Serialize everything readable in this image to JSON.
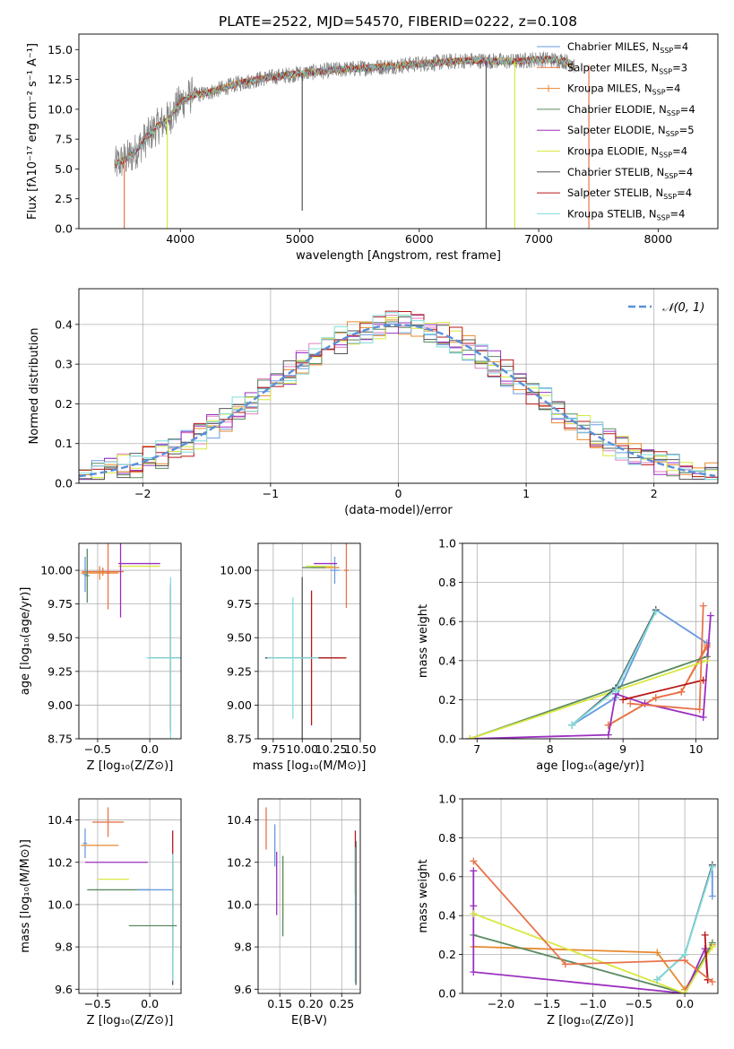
{
  "title": "PLATE=2522, MJD=54570, FIBERID=0222, z=0.108",
  "models": [
    {
      "name": "Chabrier MILES",
      "nssp": "4",
      "color": "#6a9ae0"
    },
    {
      "name": "Salpeter MILES",
      "nssp": "3",
      "color": "#e8734a"
    },
    {
      "name": "Kroupa MILES",
      "nssp": "4",
      "color": "#e8892f"
    },
    {
      "name": "Chabrier ELODIE",
      "nssp": "4",
      "color": "#5a8a62"
    },
    {
      "name": "Salpeter ELODIE",
      "nssp": "5",
      "color": "#9b30c0"
    },
    {
      "name": "Kroupa ELODIE",
      "nssp": "4",
      "color": "#d8e840"
    },
    {
      "name": "Chabrier STELIB",
      "nssp": "4",
      "color": "#555555"
    },
    {
      "name": "Salpeter STELIB",
      "nssp": "4",
      "color": "#b81818"
    },
    {
      "name": "Kroupa STELIB",
      "nssp": "4",
      "color": "#80dede"
    }
  ],
  "chart_data": [
    {
      "type": "line",
      "id": "spectrum",
      "xlabel": "wavelength [Angstrom, rest frame]",
      "ylabel": "Flux [fλ10⁻¹⁷ erg cm⁻² s⁻¹ A⁻¹]",
      "xlim": [
        3150,
        8500
      ],
      "ylim": [
        0,
        16.3
      ],
      "xticks": [
        4000,
        5000,
        6000,
        7000,
        8000
      ],
      "yticks": [
        0.0,
        2.5,
        5.0,
        7.5,
        10.0,
        12.5,
        15.0
      ],
      "observed_envelope": [
        [
          3450,
          5.3
        ],
        [
          3500,
          5.6
        ],
        [
          3600,
          6.2
        ],
        [
          3700,
          7.4
        ],
        [
          3800,
          8.5
        ],
        [
          3900,
          9.2
        ],
        [
          4000,
          10.6
        ],
        [
          4100,
          11.2
        ],
        [
          4200,
          11.3
        ],
        [
          4300,
          11.6
        ],
        [
          4500,
          12.2
        ],
        [
          4700,
          12.6
        ],
        [
          5000,
          13.0
        ],
        [
          5300,
          13.3
        ],
        [
          5600,
          13.5
        ],
        [
          6000,
          13.8
        ],
        [
          6400,
          14.1
        ],
        [
          6800,
          14.0
        ],
        [
          7000,
          14.2
        ],
        [
          7200,
          14.1
        ],
        [
          7300,
          13.7
        ]
      ],
      "model_spikes": [
        [
          3530,
          0.0
        ],
        [
          3890,
          0.0
        ],
        [
          5020,
          1.5
        ],
        [
          6560,
          0.0
        ],
        [
          6800,
          0.0
        ],
        [
          7420,
          0.0
        ]
      ]
    },
    {
      "type": "histogram",
      "id": "residuals",
      "xlabel": "(data-model)/error",
      "ylabel": "Normed distribution",
      "xlim": [
        -2.5,
        2.5
      ],
      "ylim": [
        0,
        0.49
      ],
      "xticks": [
        -2,
        -1,
        0,
        1,
        2
      ],
      "yticks": [
        0.0,
        0.1,
        0.2,
        0.3,
        0.4
      ],
      "legend": "𝒩(0, 1)",
      "legend_pos": "top-right",
      "bin_width": 0.1,
      "reference_curve": "normal(0,1)"
    },
    {
      "type": "errorbar",
      "id": "age-vs-Z",
      "xlabel": "Z [log₁₀(Z/Z⊙)]",
      "ylabel": "age  [log₁₀(age/yr)]",
      "xlim": [
        -0.68,
        0.3
      ],
      "ylim": [
        8.75,
        10.2
      ],
      "xticks": [
        -0.5,
        0.0
      ],
      "xticklabels": [
        "−0.5",
        "0.0"
      ],
      "yticks": [
        8.75,
        9.0,
        9.25,
        9.5,
        9.75,
        10.0
      ],
      "points": [
        {
          "m": 0,
          "x": -0.62,
          "y": 9.97,
          "xe": 0.02,
          "ye": 0.13
        },
        {
          "m": 1,
          "x": -0.45,
          "y": 9.99,
          "xe": 0.2,
          "ye": 0.03
        },
        {
          "m": 2,
          "x": -0.48,
          "y": 9.98,
          "xe": 0.18,
          "ye": 0.05
        },
        {
          "m": 3,
          "x": -0.6,
          "y": 9.96,
          "xe": 0.02,
          "ye": 0.2
        },
        {
          "m": 4,
          "x": -0.1,
          "y": 10.05,
          "xe": 0.2,
          "ye": 0.0
        },
        {
          "m": 5,
          "x": -0.1,
          "y": 10.03,
          "xe": 0.2,
          "ye": 0.0
        },
        {
          "m": 6,
          "x": 0.2,
          "y": 9.35,
          "xe": 0.2,
          "ye": 0.55
        },
        {
          "m": 7,
          "x": 0.2,
          "y": 9.35,
          "xe": 0.2,
          "ye": 0.53
        },
        {
          "m": 8,
          "x": 0.2,
          "y": 9.35,
          "xe": 0.23,
          "ye": 0.6
        },
        {
          "m": 1,
          "x": -0.4,
          "y": 9.98,
          "xe": 0.02,
          "ye": 0.27
        },
        {
          "m": 4,
          "x": -0.28,
          "y": 9.95,
          "xe": 0.0,
          "ye": 0.3
        }
      ]
    },
    {
      "type": "errorbar",
      "id": "age-vs-mass",
      "xlabel": "mass [log₁₀(M/M⊙)]",
      "ylabel": "",
      "xlim": [
        9.62,
        10.5
      ],
      "ylim": [
        8.75,
        10.2
      ],
      "xticks": [
        9.75,
        10.0,
        10.25,
        10.5
      ],
      "xticklabels": [
        "9.75",
        "10.00",
        "10.25",
        "10.50"
      ],
      "yticks": [
        8.75,
        9.0,
        9.25,
        9.5,
        9.75,
        10.0
      ],
      "points": [
        {
          "m": 0,
          "x": 10.28,
          "y": 10.0,
          "xe": 0.04,
          "ye": 0.1
        },
        {
          "m": 1,
          "x": 10.38,
          "y": 10.0,
          "xe": 0.02,
          "ye": 0.28
        },
        {
          "m": 2,
          "x": 10.2,
          "y": 10.02,
          "xe": 0.12,
          "ye": 0.0
        },
        {
          "m": 3,
          "x": 10.1,
          "y": 10.02,
          "xe": 0.1,
          "ye": 0.0
        },
        {
          "m": 4,
          "x": 10.2,
          "y": 10.05,
          "xe": 0.1,
          "ye": 0.0
        },
        {
          "m": 5,
          "x": 10.15,
          "y": 10.03,
          "xe": 0.12,
          "ye": 0.0
        },
        {
          "m": 6,
          "x": 10.0,
          "y": 9.35,
          "xe": 0.32,
          "ye": 0.6
        },
        {
          "m": 7,
          "x": 10.08,
          "y": 9.35,
          "xe": 0.3,
          "ye": 0.5
        },
        {
          "m": 8,
          "x": 9.92,
          "y": 9.35,
          "xe": 0.22,
          "ye": 0.45
        }
      ]
    },
    {
      "type": "line",
      "id": "weight-vs-age",
      "xlabel": "age  [log₁₀(age/yr)]",
      "ylabel": "mass weight",
      "xlim": [
        6.8,
        10.3
      ],
      "ylim": [
        0,
        1.0
      ],
      "xticks": [
        7,
        8,
        9,
        10
      ],
      "yticks": [
        0.0,
        0.2,
        0.4,
        0.6,
        0.8,
        1.0
      ],
      "series": [
        {
          "m": 0,
          "x": [
            8.3,
            8.9,
            9.45,
            10.15
          ],
          "y": [
            0.07,
            0.21,
            0.66,
            0.49
          ]
        },
        {
          "m": 2,
          "x": [
            8.8,
            9.45,
            9.8,
            10.15
          ],
          "y": [
            0.07,
            0.21,
            0.24,
            0.47
          ]
        },
        {
          "m": 1,
          "x": [
            8.8,
            9.45,
            9.8,
            10.15
          ],
          "y": [
            0.07,
            0.21,
            0.24,
            0.48
          ]
        },
        {
          "m": 3,
          "x": [
            6.9,
            8.9,
            10.15
          ],
          "y": [
            0.0,
            0.26,
            0.42
          ]
        },
        {
          "m": 4,
          "x": [
            6.9,
            8.8,
            8.9,
            9.3,
            10.1,
            10.2
          ],
          "y": [
            0.0,
            0.02,
            0.23,
            0.18,
            0.11,
            0.63
          ]
        },
        {
          "m": 5,
          "x": [
            6.9,
            10.15
          ],
          "y": [
            0.0,
            0.4
          ]
        },
        {
          "m": 6,
          "x": [
            8.3,
            8.9,
            9.45
          ],
          "y": [
            0.07,
            0.26,
            0.66
          ]
        },
        {
          "m": 7,
          "x": [
            9.0,
            10.1
          ],
          "y": [
            0.2,
            0.3
          ]
        },
        {
          "m": 8,
          "x": [
            8.3,
            8.9,
            9.45
          ],
          "y": [
            0.07,
            0.25,
            0.65
          ]
        },
        {
          "m": 1,
          "x": [
            9.1,
            10.05,
            10.1
          ],
          "y": [
            0.18,
            0.15,
            0.68
          ]
        }
      ]
    },
    {
      "type": "errorbar",
      "id": "mass-vs-Z",
      "xlabel": "Z [log₁₀(Z/Z⊙)]",
      "ylabel": "mass [log₁₀(M/M⊙)]",
      "xlim": [
        -0.68,
        0.3
      ],
      "ylim": [
        9.58,
        10.5
      ],
      "xticks": [
        -0.5,
        0.0
      ],
      "xticklabels": [
        "−0.5",
        "0.0"
      ],
      "yticks": [
        9.6,
        9.8,
        10.0,
        10.2,
        10.4
      ],
      "points": [
        {
          "m": 0,
          "x": -0.62,
          "y": 10.29,
          "xe": 0.02,
          "ye": 0.07
        },
        {
          "m": 1,
          "x": -0.4,
          "y": 10.39,
          "xe": 0.15,
          "ye": 0.07
        },
        {
          "m": 2,
          "x": -0.48,
          "y": 10.28,
          "xe": 0.18,
          "ye": 0.0
        },
        {
          "m": 3,
          "x": -0.3,
          "y": 10.07,
          "xe": 0.3,
          "ye": 0.0
        },
        {
          "m": 4,
          "x": -0.32,
          "y": 10.2,
          "xe": 0.3,
          "ye": 0.0
        },
        {
          "m": 5,
          "x": -0.35,
          "y": 10.12,
          "xe": 0.15,
          "ye": 0.0
        },
        {
          "m": 6,
          "x": 0.22,
          "y": 9.9,
          "xe": 0.0,
          "ye": 0.28
        },
        {
          "m": 7,
          "x": 0.22,
          "y": 10.07,
          "xe": 0.0,
          "ye": 0.28
        },
        {
          "m": 8,
          "x": 0.22,
          "y": 9.94,
          "xe": 0.0,
          "ye": 0.3
        },
        {
          "m": 3,
          "x": 0.03,
          "y": 9.9,
          "xe": 0.23,
          "ye": 0.0
        },
        {
          "m": 0,
          "x": 0.05,
          "y": 10.07,
          "xe": 0.17,
          "ye": 0.0
        }
      ]
    },
    {
      "type": "errorbar",
      "id": "mass-vs-ebv",
      "xlabel": "E(B-V)",
      "ylabel": "",
      "xlim": [
        0.115,
        0.28
      ],
      "ylim": [
        9.58,
        10.5
      ],
      "xticks": [
        0.15,
        0.2,
        0.25
      ],
      "xticklabels": [
        "0.15",
        "0.20",
        "0.25"
      ],
      "yticks": [
        9.6,
        9.8,
        10.0,
        10.2,
        10.4
      ],
      "points": [
        {
          "m": 1,
          "x": 0.128,
          "y": 10.36,
          "xe": 0.0,
          "ye": 0.1
        },
        {
          "m": 0,
          "x": 0.142,
          "y": 10.28,
          "xe": 0.0,
          "ye": 0.1
        },
        {
          "m": 4,
          "x": 0.145,
          "y": 10.1,
          "xe": 0.0,
          "ye": 0.15
        },
        {
          "m": 5,
          "x": 0.155,
          "y": 10.08,
          "xe": 0.0,
          "ye": 0.15
        },
        {
          "m": 3,
          "x": 0.155,
          "y": 10.04,
          "xe": 0.0,
          "ye": 0.19
        },
        {
          "m": 7,
          "x": 0.272,
          "y": 10.2,
          "xe": 0.0,
          "ye": 0.15
        },
        {
          "m": 8,
          "x": 0.272,
          "y": 9.95,
          "xe": 0.0,
          "ye": 0.32
        },
        {
          "m": 6,
          "x": 0.273,
          "y": 9.96,
          "xe": 0.0,
          "ye": 0.34
        }
      ]
    },
    {
      "type": "line",
      "id": "weight-vs-Z",
      "xlabel": "Z [log₁₀(Z/Z⊙)]",
      "ylabel": "mass weight",
      "xlim": [
        -2.42,
        0.36
      ],
      "ylim": [
        0,
        1.0
      ],
      "xticks": [
        -2.0,
        -1.5,
        -1.0,
        -0.5,
        0.0
      ],
      "xticklabels": [
        "−2.0",
        "−1.5",
        "−1.0",
        "−0.5",
        "0.0"
      ],
      "yticks": [
        0.0,
        0.2,
        0.4,
        0.6,
        0.8,
        1.0
      ],
      "series": [
        {
          "m": 0,
          "x": [
            -0.3,
            0.0,
            0.3,
            0.3
          ],
          "y": [
            0.07,
            0.2,
            0.66,
            0.5
          ]
        },
        {
          "m": 2,
          "x": [
            -2.3,
            -0.3,
            0.0,
            0.3
          ],
          "y": [
            0.24,
            0.21,
            0.02,
            0.25
          ]
        },
        {
          "m": 3,
          "x": [
            -2.3,
            0.0,
            0.3
          ],
          "y": [
            0.3,
            0.0,
            0.26
          ]
        },
        {
          "m": 4,
          "x": [
            -2.3,
            -2.3,
            -2.3,
            0.0,
            0.22,
            0.25
          ],
          "y": [
            0.63,
            0.45,
            0.11,
            0.0,
            0.23,
            0.07
          ]
        },
        {
          "m": 5,
          "x": [
            -2.3,
            0.0,
            0.3
          ],
          "y": [
            0.41,
            0.0,
            0.24
          ]
        },
        {
          "m": 6,
          "x": [
            -0.3,
            0.0,
            0.3
          ],
          "y": [
            0.07,
            0.2,
            0.66
          ]
        },
        {
          "m": 7,
          "x": [
            0.22,
            0.25
          ],
          "y": [
            0.3,
            0.07
          ]
        },
        {
          "m": 8,
          "x": [
            -0.3,
            0.0,
            0.3
          ],
          "y": [
            0.07,
            0.2,
            0.65
          ]
        },
        {
          "m": 1,
          "x": [
            -2.3,
            -1.3,
            0.0,
            0.3
          ],
          "y": [
            0.68,
            0.15,
            0.17,
            0.06
          ]
        }
      ]
    }
  ]
}
